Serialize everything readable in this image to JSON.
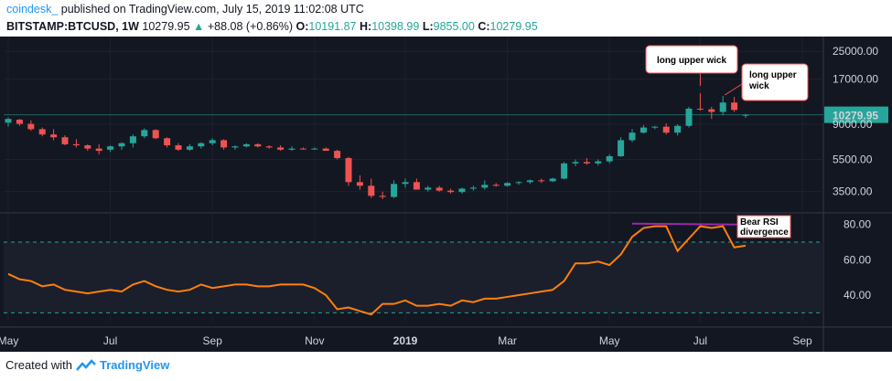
{
  "header": {
    "brand": "coindesk_",
    "published": "published on TradingView.com, July 15, 2019 11:02:08 UTC",
    "symbol": "BITSTAMP:BTCUSD, 1W",
    "last": "10279.95",
    "change_arrow": "▲",
    "change": "+88.08 (+0.86%)",
    "o_label": "O:",
    "o_value": "10191.87",
    "h_label": "H:",
    "h_value": "10398.99",
    "l_label": "L:",
    "l_value": "9855.00",
    "c_label": "C:",
    "c_value": "10279.95"
  },
  "colors": {
    "background": "#131722",
    "up": "#26a69a",
    "down": "#ef5350",
    "rsi": "#ff7f0e",
    "divergence": "#9c27b0",
    "grid": "#1e222d",
    "band": "#26a69a"
  },
  "chart_data": {
    "type": "candlestick",
    "price_axis": {
      "scale": "log",
      "ticks": [
        25000,
        17000,
        10279.95,
        9000,
        5500,
        3500
      ],
      "tick_labels": [
        "25000.00",
        "17000.00",
        "10279.95",
        "9000.00",
        "5500.00",
        "3500.00"
      ],
      "last_price_label": "10279.95",
      "range": [
        2700,
        30000
      ]
    },
    "x_axis": {
      "labels": [
        "May",
        "Jul",
        "Sep",
        "Nov",
        "2019",
        "Mar",
        "May",
        "Jul",
        "Sep"
      ],
      "label_week_index": [
        0,
        9,
        18,
        27,
        35,
        44,
        53,
        61,
        70
      ]
    },
    "candles": [
      {
        "o": 9200,
        "h": 9900,
        "l": 8700,
        "c": 9700
      },
      {
        "o": 9600,
        "h": 9700,
        "l": 8800,
        "c": 9050
      },
      {
        "o": 9050,
        "h": 9500,
        "l": 8200,
        "c": 8400
      },
      {
        "o": 8400,
        "h": 8600,
        "l": 7600,
        "c": 7800
      },
      {
        "o": 7800,
        "h": 8400,
        "l": 7200,
        "c": 7500
      },
      {
        "o": 7500,
        "h": 7700,
        "l": 6700,
        "c": 6800
      },
      {
        "o": 6800,
        "h": 7300,
        "l": 6500,
        "c": 6700
      },
      {
        "o": 6700,
        "h": 6800,
        "l": 6200,
        "c": 6400
      },
      {
        "o": 6400,
        "h": 6800,
        "l": 5900,
        "c": 6200
      },
      {
        "o": 6300,
        "h": 6700,
        "l": 6100,
        "c": 6600
      },
      {
        "o": 6600,
        "h": 7000,
        "l": 6300,
        "c": 6900
      },
      {
        "o": 6900,
        "h": 7800,
        "l": 6500,
        "c": 7600
      },
      {
        "o": 7600,
        "h": 8500,
        "l": 7400,
        "c": 8300
      },
      {
        "o": 8300,
        "h": 8400,
        "l": 7300,
        "c": 7400
      },
      {
        "o": 7400,
        "h": 7500,
        "l": 6500,
        "c": 6700
      },
      {
        "o": 6700,
        "h": 6900,
        "l": 6200,
        "c": 6300
      },
      {
        "o": 6300,
        "h": 6800,
        "l": 6200,
        "c": 6600
      },
      {
        "o": 6600,
        "h": 7000,
        "l": 6400,
        "c": 6900
      },
      {
        "o": 6900,
        "h": 7400,
        "l": 6700,
        "c": 7200
      },
      {
        "o": 7200,
        "h": 7300,
        "l": 6300,
        "c": 6500
      },
      {
        "o": 6500,
        "h": 6700,
        "l": 6300,
        "c": 6600
      },
      {
        "o": 6600,
        "h": 6900,
        "l": 6500,
        "c": 6800
      },
      {
        "o": 6800,
        "h": 6900,
        "l": 6500,
        "c": 6600
      },
      {
        "o": 6600,
        "h": 6700,
        "l": 6400,
        "c": 6500
      },
      {
        "o": 6500,
        "h": 6700,
        "l": 6200,
        "c": 6300
      },
      {
        "o": 6300,
        "h": 6600,
        "l": 6200,
        "c": 6400
      },
      {
        "o": 6400,
        "h": 6500,
        "l": 6300,
        "c": 6350
      },
      {
        "o": 6350,
        "h": 6500,
        "l": 6300,
        "c": 6400
      },
      {
        "o": 6400,
        "h": 6500,
        "l": 6300,
        "c": 6200
      },
      {
        "o": 6200,
        "h": 6300,
        "l": 5500,
        "c": 5600
      },
      {
        "o": 5600,
        "h": 5700,
        "l": 3800,
        "c": 4000
      },
      {
        "o": 4000,
        "h": 4400,
        "l": 3600,
        "c": 3800
      },
      {
        "o": 3800,
        "h": 4200,
        "l": 3200,
        "c": 3300
      },
      {
        "o": 3300,
        "h": 3500,
        "l": 3150,
        "c": 3250
      },
      {
        "o": 3250,
        "h": 4100,
        "l": 3200,
        "c": 3900
      },
      {
        "o": 3900,
        "h": 4200,
        "l": 3700,
        "c": 4000
      },
      {
        "o": 4000,
        "h": 4200,
        "l": 3700,
        "c": 3600
      },
      {
        "o": 3600,
        "h": 3800,
        "l": 3500,
        "c": 3700
      },
      {
        "o": 3700,
        "h": 3800,
        "l": 3500,
        "c": 3550
      },
      {
        "o": 3550,
        "h": 3650,
        "l": 3400,
        "c": 3480
      },
      {
        "o": 3480,
        "h": 3700,
        "l": 3400,
        "c": 3650
      },
      {
        "o": 3650,
        "h": 3800,
        "l": 3550,
        "c": 3700
      },
      {
        "o": 3700,
        "h": 4100,
        "l": 3600,
        "c": 3850
      },
      {
        "o": 3850,
        "h": 3950,
        "l": 3750,
        "c": 3800
      },
      {
        "o": 3800,
        "h": 4000,
        "l": 3750,
        "c": 3950
      },
      {
        "o": 3950,
        "h": 4050,
        "l": 3850,
        "c": 4000
      },
      {
        "o": 4000,
        "h": 4150,
        "l": 3900,
        "c": 4100
      },
      {
        "o": 4100,
        "h": 4200,
        "l": 3950,
        "c": 4050
      },
      {
        "o": 4050,
        "h": 4250,
        "l": 4000,
        "c": 4200
      },
      {
        "o": 4200,
        "h": 5300,
        "l": 4150,
        "c": 5200
      },
      {
        "o": 5200,
        "h": 5500,
        "l": 5000,
        "c": 5300
      },
      {
        "o": 5300,
        "h": 5600,
        "l": 5100,
        "c": 5200
      },
      {
        "o": 5200,
        "h": 5500,
        "l": 5050,
        "c": 5350
      },
      {
        "o": 5350,
        "h": 5900,
        "l": 5200,
        "c": 5750
      },
      {
        "o": 5750,
        "h": 7500,
        "l": 5700,
        "c": 7200
      },
      {
        "o": 7200,
        "h": 8400,
        "l": 7000,
        "c": 8000
      },
      {
        "o": 8000,
        "h": 8900,
        "l": 7900,
        "c": 8600
      },
      {
        "o": 8600,
        "h": 8800,
        "l": 8400,
        "c": 8700
      },
      {
        "o": 8700,
        "h": 9100,
        "l": 7800,
        "c": 8000
      },
      {
        "o": 8000,
        "h": 9000,
        "l": 7700,
        "c": 8800
      },
      {
        "o": 8800,
        "h": 11500,
        "l": 8600,
        "c": 11200
      },
      {
        "o": 11200,
        "h": 13900,
        "l": 10900,
        "c": 11100
      },
      {
        "o": 11100,
        "h": 11500,
        "l": 9700,
        "c": 10700
      },
      {
        "o": 10700,
        "h": 13400,
        "l": 10200,
        "c": 12200
      },
      {
        "o": 12200,
        "h": 13200,
        "l": 10700,
        "c": 11000
      },
      {
        "o": 10191.87,
        "h": 10398.99,
        "l": 9855,
        "c": 10279.95
      }
    ],
    "rsi": {
      "axis_ticks": [
        80,
        60,
        40
      ],
      "tick_labels": [
        "80.00",
        "60.00",
        "40.00"
      ],
      "range": [
        25,
        85
      ],
      "upper_band": 70,
      "lower_band": 30,
      "values": [
        52,
        49,
        48,
        45,
        46,
        43,
        42,
        41,
        42,
        43,
        42,
        46,
        48,
        45,
        43,
        42,
        43,
        46,
        44,
        45,
        46,
        46,
        45,
        45,
        46,
        46,
        46,
        44,
        40,
        32,
        33,
        31,
        29,
        35,
        35,
        37,
        34,
        34,
        35,
        34,
        37,
        36,
        38,
        38,
        39,
        40,
        41,
        42,
        43,
        48,
        58,
        58,
        59,
        57,
        63,
        73,
        78,
        79,
        79,
        65,
        72,
        79,
        78,
        79,
        67,
        68
      ]
    },
    "annotations": [
      {
        "text_lines": [
          "long upper wick"
        ],
        "week_index": 61
      },
      {
        "text_lines": [
          "long upper",
          "wick"
        ],
        "week_index": 63
      },
      {
        "text_lines": [
          "Bear RSI",
          "divergence"
        ],
        "week_index": 64
      }
    ],
    "divergence_line": {
      "from_week": 55,
      "to_week": 66,
      "rsi_from": 80.5,
      "rsi_to": 79.8
    }
  },
  "footer": {
    "created_with": "Created with",
    "brand": "TradingView"
  }
}
